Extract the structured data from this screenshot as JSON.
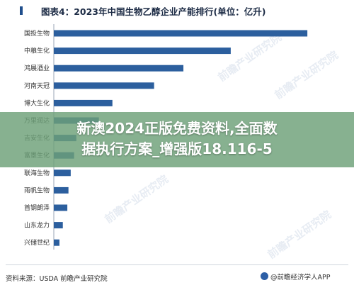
{
  "chart_data": {
    "type": "bar",
    "orientation": "horizontal",
    "title": "图表4：2023年中国生物乙醇企业产能排行(单位：亿升)",
    "categories": [
      "国投生物",
      "中粮生化",
      "鸿展酒业",
      "河南天冠",
      "博大生化",
      "万里润达",
      "吉安生化",
      "富墨生化",
      "联海生物",
      "雨帆生物",
      "首钢朗泽",
      "山东龙力",
      "兴储世纪"
    ],
    "values": [
      22.5,
      15.7,
      11.5,
      8.9,
      5.2,
      4.0,
      2.0,
      1.8,
      1.5,
      1.3,
      1.2,
      0.8,
      0.5
    ],
    "bar_color": "#2c5f9e",
    "xlim": [
      0,
      24
    ],
    "grid": false,
    "legend": "none"
  },
  "overlay": {
    "line1": "新澳2024正版免费资料,全面数",
    "line2": "据执行方案_增强版18.116-5"
  },
  "footer": {
    "source": "资料来源：USDA 前瞻产业研究院",
    "brand": "@前瞻经济学人APP"
  },
  "watermark": "前瞻产业研究院"
}
